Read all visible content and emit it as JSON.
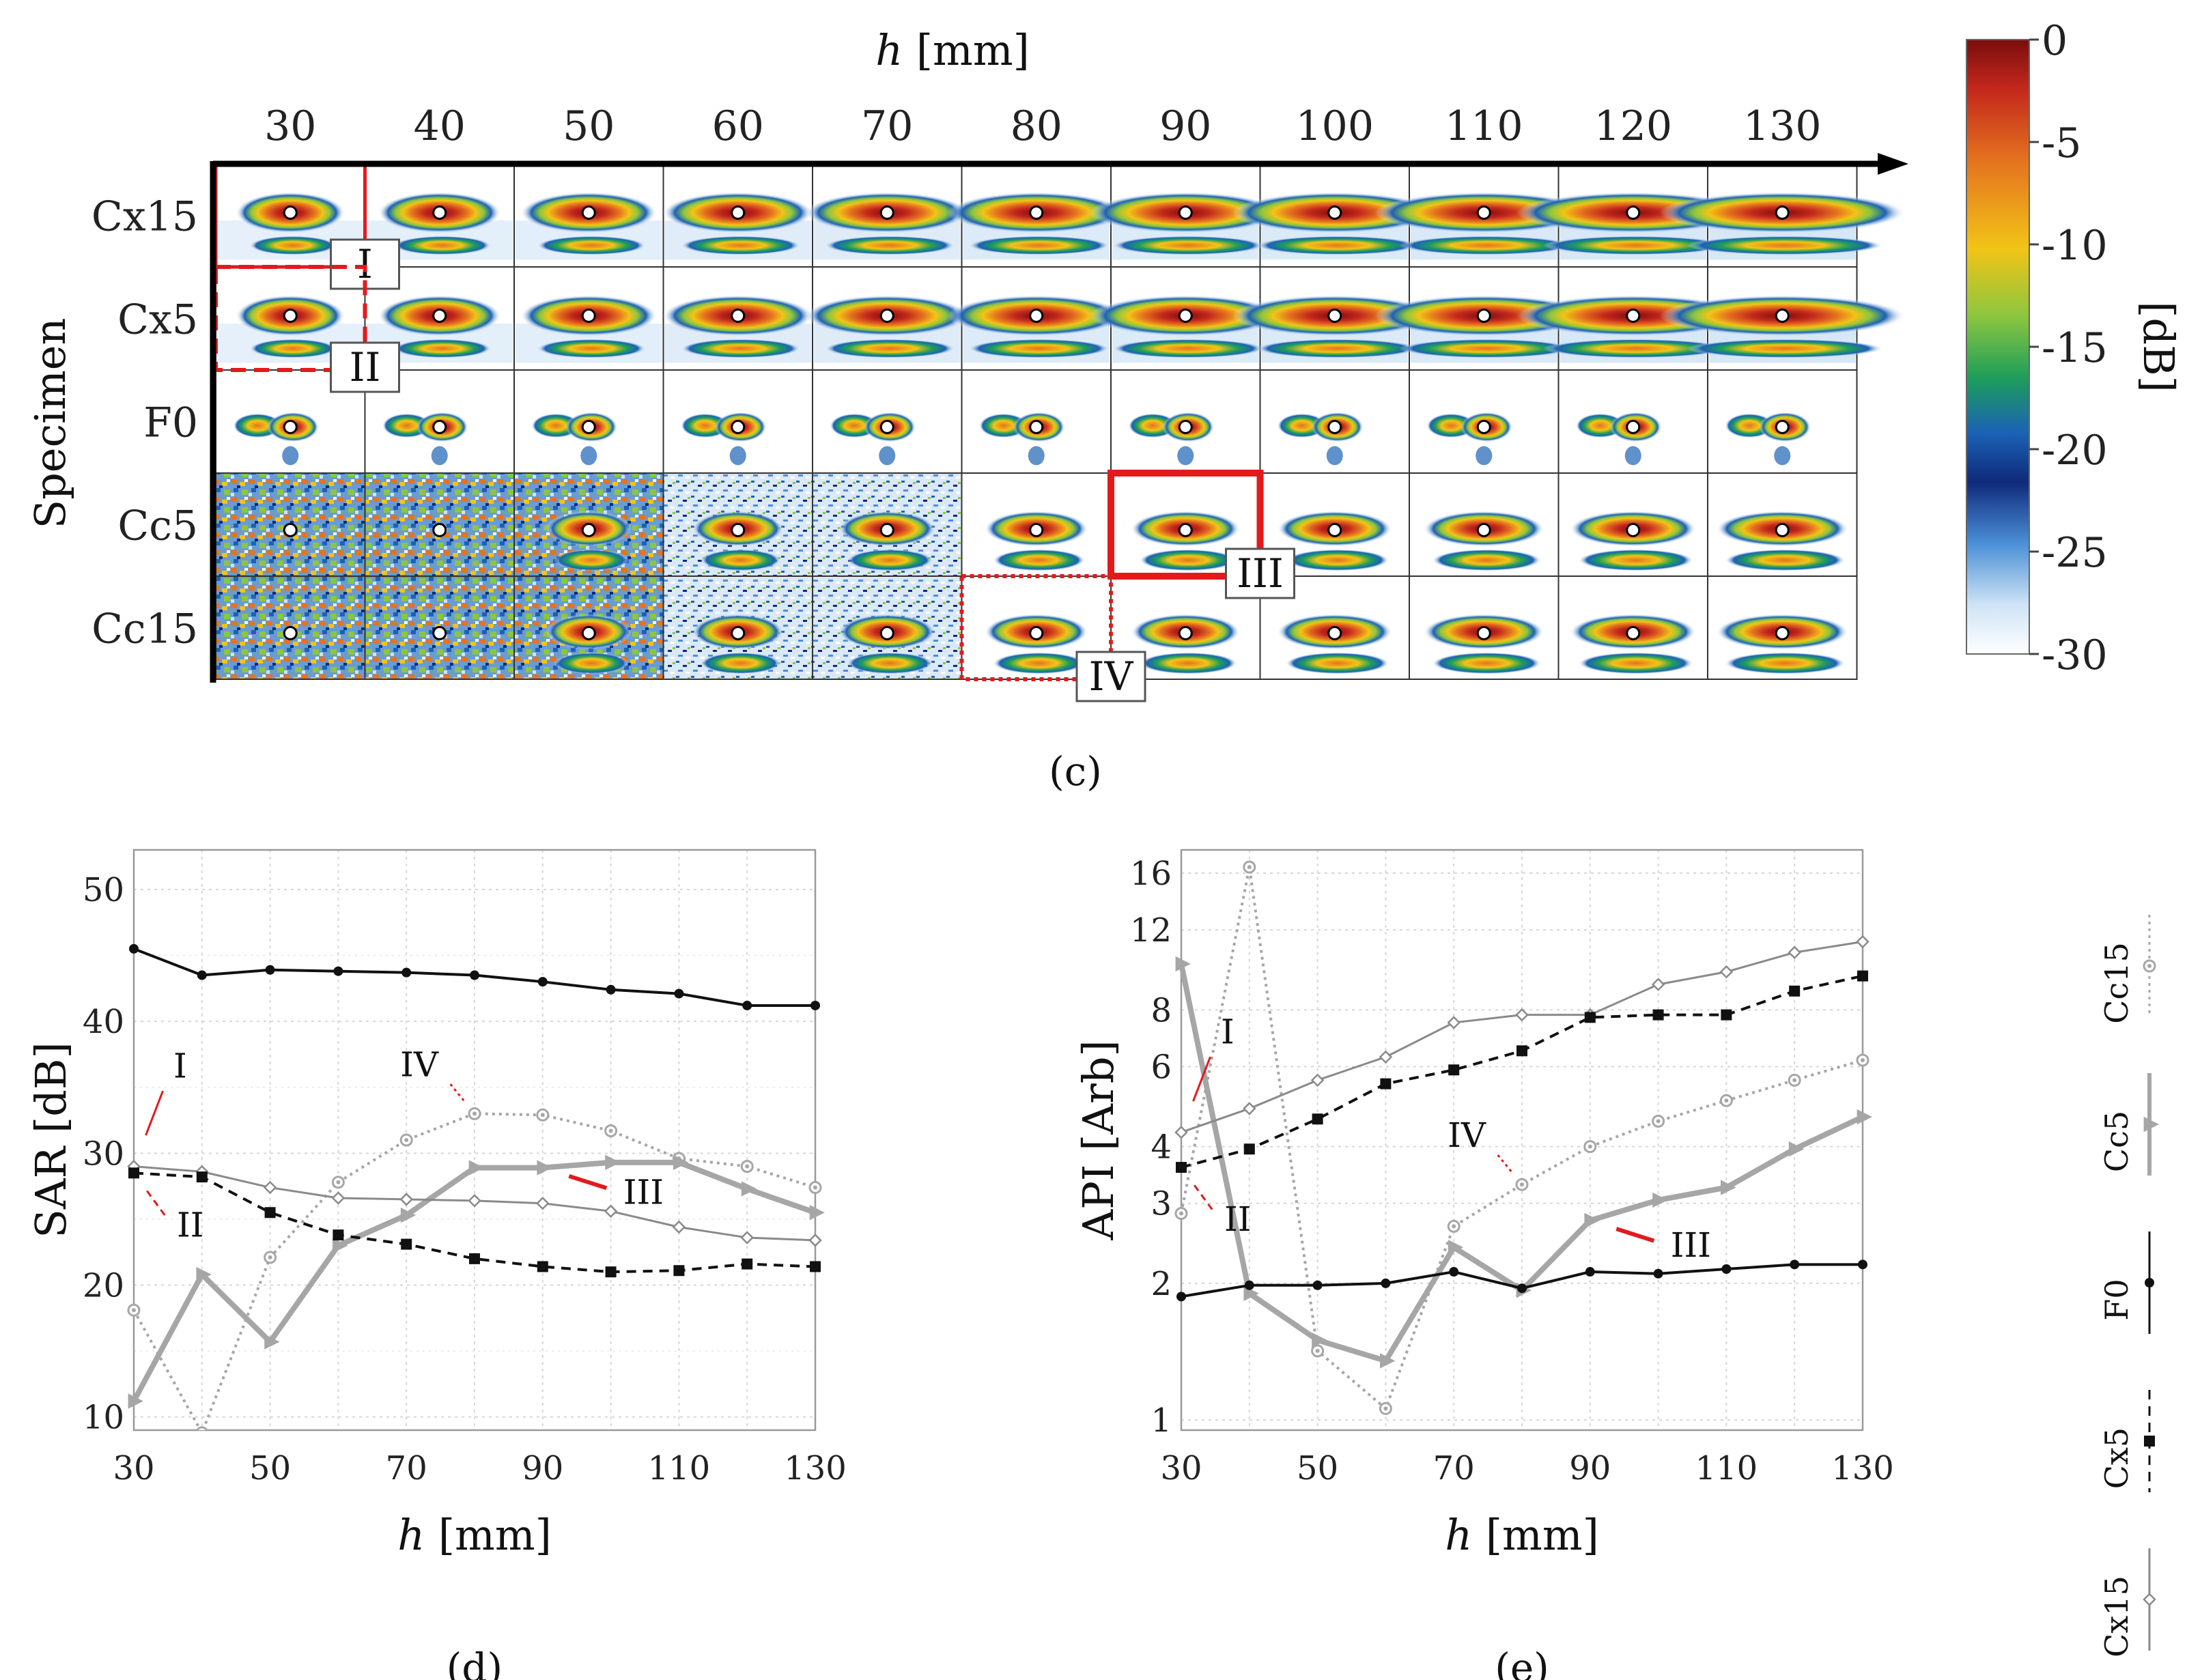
{
  "chart_data": [
    {
      "id": "c",
      "type": "heatmap",
      "panel_label": "(c)",
      "title": "",
      "xlabel_var": "h",
      "xlabel_unit": "[mm]",
      "ylabel": "Specimen",
      "columns": [
        "30",
        "40",
        "50",
        "60",
        "70",
        "80",
        "90",
        "100",
        "110",
        "120",
        "130"
      ],
      "rows": [
        "Cx15",
        "Cx5",
        "F0",
        "Cc5",
        "Cc15"
      ],
      "colorbar": {
        "ticks": [
          "0",
          "-5",
          "-10",
          "-15",
          "-20",
          "-25",
          "-30"
        ],
        "label": "[dB]",
        "range": [
          -30,
          0
        ],
        "colors": [
          "#7a0d0d",
          "#c4281c",
          "#e4741f",
          "#f2c417",
          "#8cc63f",
          "#1e9e5a",
          "#1b62b5",
          "#0f2a7a",
          "#4a8fd6",
          "#cfe3f5",
          "#ffffff"
        ]
      },
      "annotations": [
        {
          "label": "I",
          "row": "Cx15",
          "column": "30",
          "style": "solid"
        },
        {
          "label": "II",
          "row": "Cx5",
          "column": "30",
          "style": "dashed"
        },
        {
          "label": "III",
          "row": "Cc5",
          "column": "90",
          "style": "solid"
        },
        {
          "label": "IV",
          "row": "Cc15",
          "column": "80",
          "style": "dotted"
        }
      ]
    },
    {
      "id": "d",
      "type": "line",
      "panel_label": "(d)",
      "xlabel_var": "h",
      "xlabel_unit": "[mm]",
      "ylabel": "SAR [dB]",
      "x": [
        30,
        40,
        50,
        60,
        70,
        80,
        90,
        100,
        110,
        120,
        130
      ],
      "xticks": [
        "30",
        "50",
        "70",
        "90",
        "110",
        "130"
      ],
      "yticks": [
        "10",
        "20",
        "30",
        "40",
        "50"
      ],
      "xlim": [
        30,
        130
      ],
      "ylim": [
        9,
        53
      ],
      "grid": true,
      "series": [
        {
          "name": "F0",
          "values": [
            45.5,
            43.5,
            43.9,
            43.8,
            43.7,
            43.5,
            43.0,
            42.4,
            42.1,
            41.2,
            41.2
          ]
        },
        {
          "name": "Cx5",
          "values": [
            28.5,
            28.2,
            25.5,
            23.8,
            23.1,
            22.0,
            21.4,
            21.0,
            21.1,
            21.6,
            21.4
          ]
        },
        {
          "name": "Cx15",
          "values": [
            29.0,
            28.6,
            27.4,
            26.6,
            26.5,
            26.4,
            26.2,
            25.6,
            24.4,
            23.6,
            23.4
          ]
        },
        {
          "name": "Cc5",
          "values": [
            11.2,
            20.8,
            15.7,
            23.0,
            25.3,
            28.9,
            28.9,
            29.3,
            29.3,
            27.3,
            25.5
          ]
        },
        {
          "name": "Cc15",
          "values": [
            18.1,
            8.8,
            22.1,
            27.8,
            31.0,
            33.0,
            32.9,
            31.7,
            29.6,
            29.0,
            27.4
          ]
        }
      ],
      "annotations": [
        {
          "label": "I",
          "x": 30,
          "y": 29.0
        },
        {
          "label": "II",
          "x": 30,
          "y": 28.5
        },
        {
          "label": "III",
          "x": 90,
          "y": 28.9
        },
        {
          "label": "IV",
          "x": 80,
          "y": 33.0
        }
      ]
    },
    {
      "id": "e",
      "type": "line",
      "panel_label": "(e)",
      "xlabel_var": "h",
      "xlabel_unit": "[mm]",
      "ylabel": "API [Arb]",
      "yscale": "log",
      "x": [
        30,
        40,
        50,
        60,
        70,
        80,
        90,
        100,
        110,
        120,
        130
      ],
      "xticks": [
        "30",
        "50",
        "70",
        "90",
        "110",
        "130"
      ],
      "yticks": [
        "1",
        "2",
        "3",
        "4",
        "6",
        "8",
        "12",
        "16"
      ],
      "xlim": [
        30,
        130
      ],
      "ylim": [
        0.95,
        18
      ],
      "grid": true,
      "series": [
        {
          "name": "F0",
          "values": [
            1.87,
            1.98,
            1.98,
            2.0,
            2.12,
            1.95,
            2.12,
            2.1,
            2.15,
            2.2,
            2.2
          ]
        },
        {
          "name": "Cx5",
          "values": [
            3.6,
            3.95,
            4.6,
            5.5,
            5.9,
            6.5,
            7.7,
            7.8,
            7.8,
            8.8,
            9.5
          ]
        },
        {
          "name": "Cx15",
          "values": [
            4.3,
            4.85,
            5.6,
            6.3,
            7.5,
            7.8,
            7.8,
            9.1,
            9.7,
            10.7,
            11.3
          ]
        },
        {
          "name": "Cc5",
          "values": [
            10.1,
            1.9,
            1.5,
            1.35,
            2.4,
            1.93,
            2.75,
            3.05,
            3.25,
            3.95,
            4.65
          ]
        },
        {
          "name": "Cc15",
          "values": [
            2.85,
            16.5,
            1.42,
            1.06,
            2.67,
            3.3,
            4.0,
            4.55,
            5.05,
            5.6,
            6.2
          ]
        }
      ],
      "annotations": [
        {
          "label": "I",
          "x": 30,
          "y": 4.3
        },
        {
          "label": "II",
          "x": 30,
          "y": 3.6
        },
        {
          "label": "III",
          "x": 90,
          "y": 2.75
        },
        {
          "label": "IV",
          "x": 80,
          "y": 3.3
        }
      ]
    }
  ],
  "legend": {
    "entries": [
      "Cc15",
      "Cc5",
      "F0",
      "Cx5",
      "Cx15"
    ]
  },
  "colors": {
    "F0": "#111111",
    "Cx5": "#111111",
    "Cx15": "#8a8a8a",
    "Cc5": "#a6a6a6",
    "Cc15": "#a6a6a6",
    "annotation": "#e31a1c",
    "grid": "#d6d6d6"
  }
}
